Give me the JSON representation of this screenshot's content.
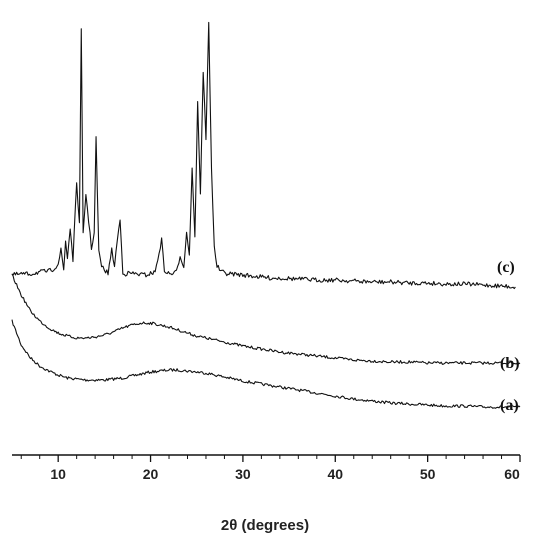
{
  "chart_data": {
    "type": "line",
    "title": "",
    "xlabel": "2θ (degrees)",
    "ylabel": "",
    "xlim": [
      5,
      60
    ],
    "xticks": [
      10,
      20,
      30,
      40,
      50,
      60
    ],
    "xtick_labels": [
      "10",
      "20",
      "30",
      "40",
      "50",
      "60"
    ],
    "y_axis_shown": false,
    "grid": false,
    "legend": "none",
    "line_color": "#111111",
    "series": [
      {
        "name": "(a)",
        "x": [
          5,
          6,
          7,
          8,
          9,
          10,
          11,
          12,
          13,
          14,
          15,
          16,
          17,
          18,
          19,
          20,
          21,
          22,
          23,
          24,
          25,
          26,
          27,
          28,
          29,
          30,
          32,
          34,
          36,
          38,
          40,
          42,
          44,
          46,
          48,
          50,
          52,
          54,
          56,
          58,
          60
        ],
        "y": [
          100,
          76,
          63,
          55,
          50,
          46,
          43,
          42,
          41,
          41,
          41,
          42,
          43,
          45,
          47,
          49,
          50,
          51,
          51,
          50,
          49,
          48,
          46,
          44,
          42,
          40,
          37,
          34,
          31,
          28,
          25,
          22,
          20,
          18,
          17,
          16,
          15,
          15,
          14,
          14,
          14
        ]
      },
      {
        "name": "(b)",
        "x": [
          5,
          6,
          7,
          8,
          9,
          10,
          11,
          12,
          13,
          14,
          15,
          16,
          17,
          18,
          19,
          20,
          21,
          22,
          23,
          24,
          25,
          26,
          27,
          28,
          29,
          30,
          32,
          34,
          36,
          38,
          40,
          42,
          44,
          46,
          48,
          50,
          52,
          54,
          56,
          58,
          60
        ],
        "y": [
          108,
          88,
          72,
          62,
          55,
          50,
          47,
          45,
          45,
          46,
          48,
          51,
          55,
          58,
          60,
          60,
          58,
          56,
          53,
          50,
          47,
          45,
          43,
          41,
          39,
          37,
          34,
          31,
          29,
          27,
          25,
          23,
          22,
          21,
          21,
          20,
          20,
          20,
          20,
          20,
          20
        ]
      },
      {
        "name": "(c)",
        "x": [
          5,
          6,
          7,
          8,
          9,
          9.5,
          10,
          10.3,
          10.6,
          10.8,
          11,
          11.3,
          11.6,
          12,
          12.3,
          12.5,
          12.7,
          13,
          13.3,
          13.6,
          13.9,
          14.1,
          14.4,
          14.7,
          15,
          15.4,
          15.8,
          16.1,
          16.4,
          16.7,
          17,
          17.3,
          17.7,
          18.5,
          19.5,
          20.5,
          21.2,
          21.5,
          21.8,
          22.2,
          22.8,
          23.2,
          23.6,
          23.9,
          24.2,
          24.5,
          24.8,
          25.1,
          25.4,
          25.7,
          26,
          26.3,
          26.6,
          26.9,
          27.2,
          27.6,
          28,
          28.5,
          29,
          30,
          31,
          32,
          33,
          34,
          36,
          38,
          40,
          42,
          44,
          46,
          48,
          50,
          52,
          54,
          56,
          58,
          59.5
        ],
        "y": [
          3,
          4,
          4,
          6,
          7,
          9,
          14,
          28,
          8,
          37,
          20,
          50,
          18,
          96,
          54,
          248,
          45,
          84,
          57,
          30,
          45,
          140,
          26,
          12,
          8,
          5,
          28,
          12,
          38,
          58,
          6,
          4,
          5,
          4,
          3,
          6,
          38,
          8,
          5,
          4,
          6,
          22,
          12,
          45,
          24,
          110,
          42,
          175,
          85,
          205,
          140,
          255,
          110,
          30,
          12,
          7,
          5,
          4,
          4,
          3,
          2,
          1,
          0,
          0,
          -1,
          -2,
          -2,
          -3,
          -4,
          -4,
          -5,
          -5,
          -6,
          -6,
          -7,
          -8,
          -9
        ]
      }
    ],
    "series_labels": [
      "(a)",
      "(b)",
      "(c)"
    ]
  }
}
